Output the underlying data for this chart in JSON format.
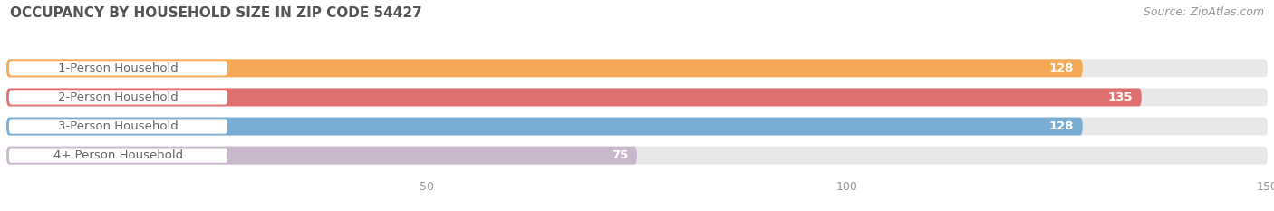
{
  "title": "OCCUPANCY BY HOUSEHOLD SIZE IN ZIP CODE 54427",
  "source": "Source: ZipAtlas.com",
  "categories": [
    "1-Person Household",
    "2-Person Household",
    "3-Person Household",
    "4+ Person Household"
  ],
  "values": [
    128,
    135,
    128,
    75
  ],
  "bar_colors": [
    "#F5A855",
    "#E07070",
    "#7AADD4",
    "#C9B8CC"
  ],
  "bar_bg_color": "#E8E8E8",
  "label_pill_color": "#FFFFFF",
  "xlim": [
    0,
    150
  ],
  "xticks": [
    50,
    100,
    150
  ],
  "label_text_color": "#666666",
  "value_text_color": "#FFFFFF",
  "title_color": "#555555",
  "source_color": "#999999",
  "fig_bg_color": "#FFFFFF",
  "bar_height": 0.62,
  "label_fontsize": 9.5,
  "value_fontsize": 9.5,
  "title_fontsize": 11,
  "source_fontsize": 9
}
